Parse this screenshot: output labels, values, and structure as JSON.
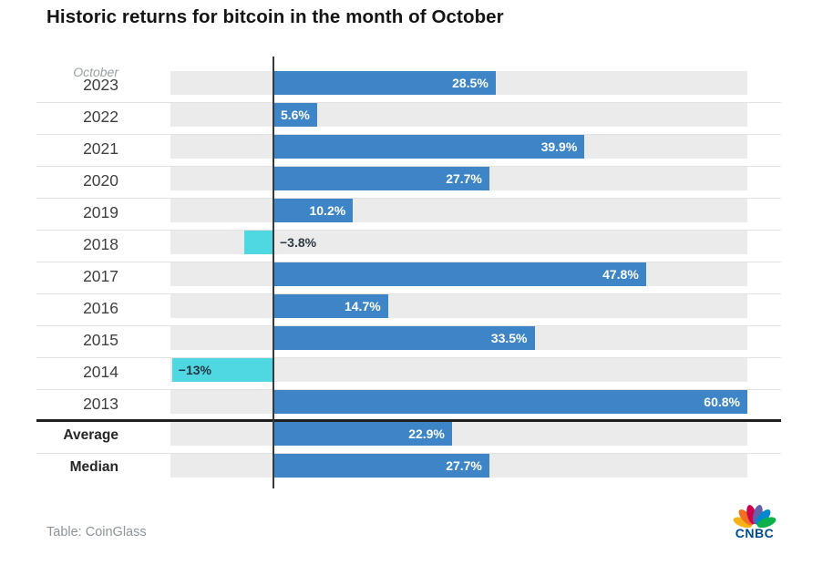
{
  "title": "Historic returns for bitcoin in the month of October",
  "source": "Table: CoinGlass",
  "logo": {
    "text": "CNBC"
  },
  "chart_data": {
    "type": "bar",
    "orientation": "horizontal",
    "axis_header": "October",
    "unit": "%",
    "xlim": [
      -13.2,
      60.8
    ],
    "grid": false,
    "legend": "none",
    "colors": {
      "positive": "#3d85c6",
      "negative": "#4fd8e2",
      "track": "#ebebeb",
      "positive_label": "#ffffff",
      "negative_label": "#243642"
    },
    "categories": [
      "2023",
      "2022",
      "2021",
      "2020",
      "2019",
      "2018",
      "2017",
      "2016",
      "2015",
      "2014",
      "2013",
      "Average",
      "Median"
    ],
    "values": [
      28.5,
      5.6,
      39.9,
      27.7,
      10.2,
      -3.8,
      47.8,
      14.7,
      33.5,
      -13,
      60.8,
      22.9,
      27.7
    ],
    "rows": [
      {
        "label": "2023",
        "value": 28.5,
        "display": "28.5%",
        "type": "year",
        "value_label": "inside-end"
      },
      {
        "label": "2022",
        "value": 5.6,
        "display": "5.6%",
        "type": "year",
        "value_label": "inside-end"
      },
      {
        "label": "2021",
        "value": 39.9,
        "display": "39.9%",
        "type": "year",
        "value_label": "inside-end"
      },
      {
        "label": "2020",
        "value": 27.7,
        "display": "27.7%",
        "type": "year",
        "value_label": "inside-end"
      },
      {
        "label": "2019",
        "value": 10.2,
        "display": "10.2%",
        "type": "year",
        "value_label": "inside-end"
      },
      {
        "label": "2018",
        "value": -3.8,
        "display": "−3.8%",
        "type": "year",
        "value_label": "outside-end"
      },
      {
        "label": "2017",
        "value": 47.8,
        "display": "47.8%",
        "type": "year",
        "value_label": "inside-end"
      },
      {
        "label": "2016",
        "value": 14.7,
        "display": "14.7%",
        "type": "year",
        "value_label": "inside-end"
      },
      {
        "label": "2015",
        "value": 33.5,
        "display": "33.5%",
        "type": "year",
        "value_label": "inside-end"
      },
      {
        "label": "2014",
        "value": -13,
        "display": "−13%",
        "type": "year",
        "value_label": "inside-start"
      },
      {
        "label": "2013",
        "value": 60.8,
        "display": "60.8%",
        "type": "year",
        "value_label": "inside-end",
        "divider_below": "thick"
      },
      {
        "label": "Average",
        "value": 22.9,
        "display": "22.9%",
        "type": "aggregate",
        "value_label": "inside-end"
      },
      {
        "label": "Median",
        "value": 27.7,
        "display": "27.7%",
        "type": "aggregate",
        "value_label": "inside-end",
        "divider_below": "none"
      }
    ]
  }
}
